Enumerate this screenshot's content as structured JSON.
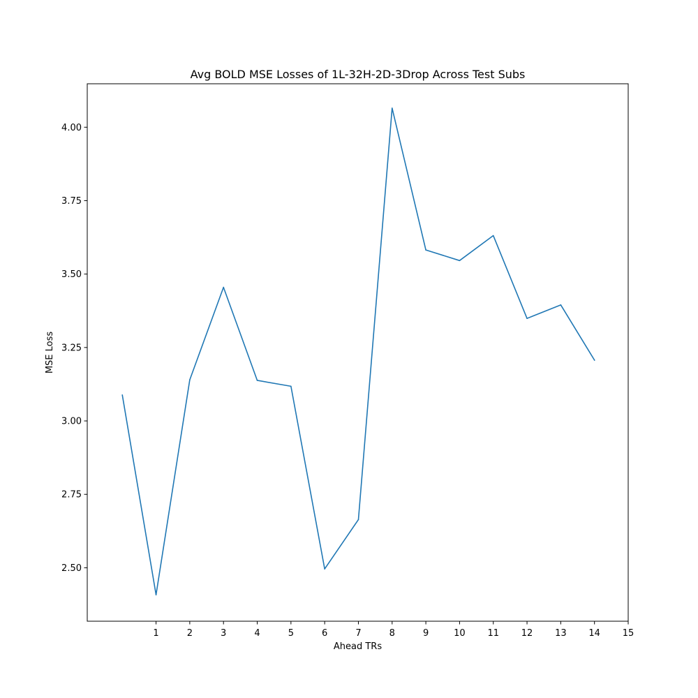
{
  "chart_data": {
    "type": "line",
    "title": "Avg BOLD MSE Losses of 1L-32H-2D-3Drop Across Test Subs",
    "xlabel": "Ahead TRs",
    "ylabel": "MSE Loss",
    "xlim": [
      -1.04,
      15.0
    ],
    "ylim": [
      2.318,
      4.148
    ],
    "xticks": [
      1,
      2,
      3,
      4,
      5,
      6,
      7,
      8,
      9,
      10,
      11,
      12,
      13,
      14,
      15
    ],
    "yticks": [
      2.5,
      2.75,
      3.0,
      3.25,
      3.5,
      3.75,
      4.0
    ],
    "ytick_labels": [
      "2.50",
      "2.75",
      "3.00",
      "3.25",
      "3.50",
      "3.75",
      "4.00"
    ],
    "grid": false,
    "series": [
      {
        "color": "#1f77b4",
        "x": [
          0,
          1,
          2,
          3,
          4,
          5,
          6,
          7,
          8,
          9,
          10,
          11,
          12,
          13,
          14
        ],
        "values": [
          3.088,
          2.408,
          3.14,
          3.455,
          3.138,
          3.118,
          2.496,
          2.664,
          4.065,
          3.582,
          3.546,
          3.631,
          3.349,
          3.395,
          3.207
        ]
      }
    ]
  }
}
